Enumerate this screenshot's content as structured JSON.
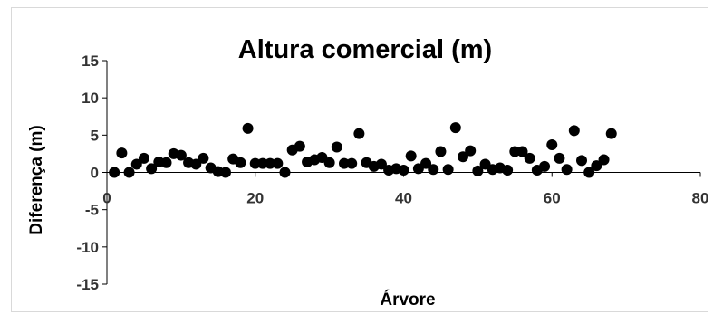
{
  "chart_data": {
    "type": "scatter",
    "title": "Altura comercial (m)",
    "xlabel": "Árvore",
    "ylabel": "Diferença (m)",
    "xlim": [
      0,
      80
    ],
    "ylim": [
      -15,
      15
    ],
    "xticks": [
      0,
      20,
      40,
      60,
      80
    ],
    "yticks": [
      15,
      10,
      5,
      0,
      -5,
      -10,
      -15
    ],
    "grid": false,
    "marker_color": "#000000",
    "series": [
      {
        "x": [
          1,
          2,
          3,
          4,
          5,
          6,
          7,
          8,
          9,
          10,
          11,
          12,
          13,
          14,
          15,
          16,
          17,
          18,
          19,
          20,
          21,
          22,
          23,
          24,
          25,
          26,
          27,
          28,
          29,
          30,
          31,
          32,
          33,
          34,
          35,
          36,
          37,
          38,
          39,
          40,
          41,
          42,
          43,
          44,
          45,
          46,
          47,
          48,
          49,
          50,
          51,
          52,
          53,
          54,
          55,
          56,
          57,
          58,
          59,
          60,
          61,
          62,
          63,
          64,
          65,
          66,
          67,
          68
        ],
        "y": [
          0.0,
          2.6,
          0.0,
          1.1,
          1.9,
          0.5,
          1.4,
          1.3,
          2.5,
          2.3,
          1.3,
          1.1,
          1.9,
          0.6,
          0.1,
          0.0,
          1.8,
          1.3,
          5.9,
          1.2,
          1.2,
          1.2,
          1.2,
          0.0,
          3.0,
          3.5,
          1.4,
          1.7,
          2.0,
          1.3,
          3.4,
          1.2,
          1.2,
          5.2,
          1.3,
          0.8,
          1.1,
          0.3,
          0.5,
          0.3,
          2.2,
          0.5,
          1.2,
          0.4,
          2.8,
          0.4,
          6.0,
          2.1,
          2.9,
          0.2,
          1.1,
          0.4,
          0.6,
          0.3,
          2.8,
          2.8,
          1.9,
          0.3,
          0.8,
          3.7,
          1.9,
          0.4,
          5.6,
          1.6,
          0.0,
          0.9,
          1.7,
          5.2
        ]
      }
    ]
  }
}
